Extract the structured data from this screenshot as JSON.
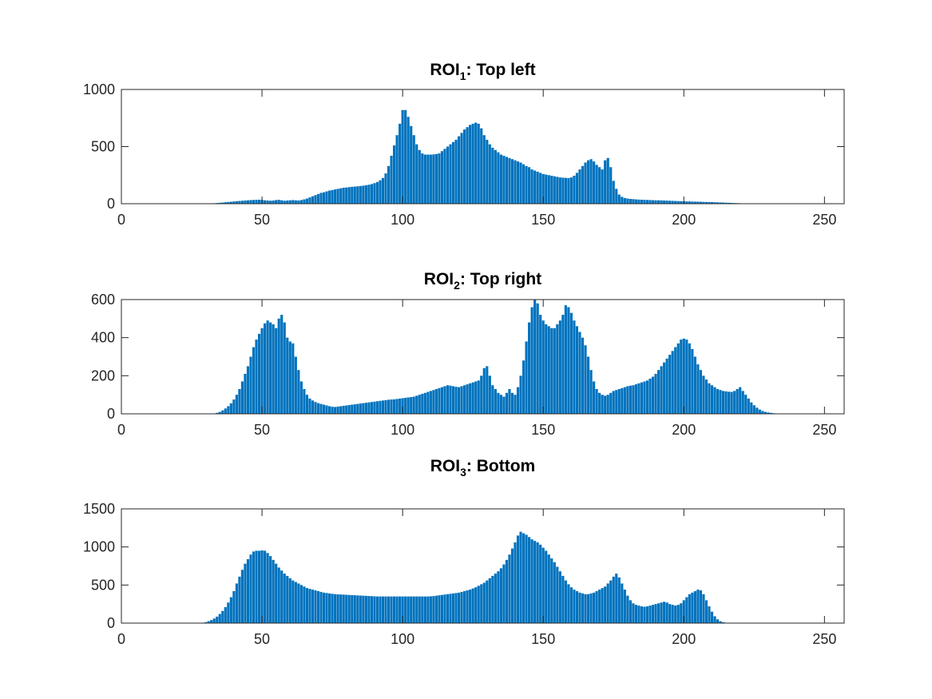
{
  "colors": {
    "bar": "#0072BD",
    "bar_edge": "#ffffff",
    "axes": "#262626",
    "text": "#262626"
  },
  "chart_data": [
    {
      "type": "bar",
      "title": {
        "main": "ROI",
        "sub": "1",
        "rest": ": Top left"
      },
      "xlabel": "",
      "ylabel": "",
      "xlim": [
        0,
        257
      ],
      "ylim": [
        0,
        1000
      ],
      "xticks": [
        0,
        50,
        100,
        150,
        200,
        250
      ],
      "yticks": [
        0,
        500,
        1000
      ],
      "grid": false,
      "x_start": 0,
      "values": [
        0,
        0,
        0,
        0,
        0,
        0,
        0,
        0,
        0,
        0,
        0,
        0,
        0,
        0,
        0,
        0,
        0,
        0,
        0,
        0,
        0,
        0,
        0,
        0,
        0,
        0,
        0,
        0,
        0,
        0,
        1,
        2,
        3,
        4,
        6,
        8,
        10,
        13,
        15,
        17,
        20,
        22,
        24,
        26,
        28,
        30,
        32,
        33,
        34,
        35,
        33,
        30,
        28,
        26,
        28,
        32,
        34,
        30,
        26,
        28,
        30,
        32,
        30,
        28,
        32,
        38,
        45,
        55,
        65,
        75,
        85,
        95,
        100,
        108,
        115,
        120,
        125,
        130,
        135,
        140,
        142,
        145,
        148,
        150,
        152,
        155,
        158,
        162,
        166,
        172,
        180,
        190,
        205,
        225,
        265,
        330,
        420,
        510,
        600,
        700,
        820,
        820,
        760,
        680,
        600,
        520,
        470,
        440,
        430,
        430,
        430,
        432,
        435,
        440,
        460,
        480,
        500,
        520,
        540,
        560,
        590,
        620,
        650,
        670,
        690,
        700,
        710,
        700,
        660,
        600,
        560,
        520,
        490,
        470,
        450,
        430,
        420,
        410,
        400,
        390,
        380,
        370,
        360,
        345,
        330,
        320,
        300,
        290,
        280,
        270,
        260,
        255,
        250,
        245,
        240,
        235,
        230,
        228,
        226,
        224,
        230,
        245,
        270,
        300,
        330,
        360,
        380,
        390,
        370,
        340,
        320,
        300,
        380,
        400,
        320,
        200,
        130,
        80,
        60,
        50,
        45,
        42,
        40,
        38,
        36,
        35,
        34,
        33,
        32,
        31,
        30,
        30,
        29,
        28,
        27,
        26,
        25,
        24,
        23,
        22,
        21,
        20,
        20,
        19,
        18,
        18,
        17,
        16,
        15,
        15,
        14,
        13,
        12,
        11,
        10,
        9,
        8,
        7,
        6,
        5,
        4,
        3,
        2,
        1,
        1,
        0,
        0,
        0,
        0,
        0,
        0,
        0,
        0,
        0,
        0,
        0,
        0,
        0,
        0,
        0,
        0,
        0,
        0,
        0,
        0,
        0,
        0,
        0,
        0,
        0,
        0,
        0,
        0,
        0,
        0,
        0,
        0
      ]
    },
    {
      "type": "bar",
      "title": {
        "main": "ROI",
        "sub": "2",
        "rest": ": Top right"
      },
      "xlabel": "",
      "ylabel": "",
      "xlim": [
        0,
        257
      ],
      "ylim": [
        0,
        600
      ],
      "xticks": [
        0,
        50,
        100,
        150,
        200,
        250
      ],
      "yticks": [
        0,
        200,
        400,
        600
      ],
      "grid": false,
      "x_start": 0,
      "values": [
        0,
        0,
        0,
        0,
        0,
        0,
        0,
        0,
        0,
        0,
        0,
        0,
        0,
        0,
        0,
        0,
        0,
        0,
        0,
        0,
        0,
        0,
        0,
        0,
        0,
        0,
        0,
        0,
        0,
        0,
        0,
        0,
        1,
        2,
        5,
        10,
        18,
        28,
        40,
        55,
        75,
        100,
        130,
        170,
        210,
        250,
        300,
        350,
        390,
        420,
        450,
        475,
        490,
        480,
        470,
        450,
        500,
        520,
        480,
        400,
        380,
        370,
        300,
        230,
        170,
        130,
        100,
        80,
        70,
        62,
        56,
        52,
        48,
        44,
        40,
        37,
        36,
        38,
        40,
        42,
        44,
        46,
        48,
        50,
        52,
        54,
        56,
        58,
        60,
        62,
        64,
        66,
        68,
        70,
        72,
        74,
        75,
        76,
        78,
        80,
        82,
        84,
        86,
        88,
        90,
        95,
        100,
        105,
        110,
        115,
        120,
        125,
        130,
        135,
        140,
        145,
        150,
        148,
        145,
        142,
        140,
        145,
        150,
        155,
        160,
        165,
        170,
        175,
        200,
        240,
        250,
        200,
        150,
        130,
        110,
        100,
        90,
        110,
        130,
        110,
        100,
        140,
        200,
        280,
        380,
        480,
        560,
        600,
        580,
        520,
        490,
        470,
        460,
        450,
        450,
        470,
        490,
        520,
        570,
        560,
        530,
        490,
        460,
        430,
        400,
        360,
        300,
        230,
        170,
        130,
        110,
        100,
        95,
        100,
        110,
        120,
        125,
        130,
        135,
        140,
        145,
        148,
        150,
        155,
        160,
        165,
        170,
        175,
        185,
        195,
        210,
        230,
        250,
        270,
        290,
        310,
        330,
        350,
        370,
        390,
        395,
        390,
        370,
        340,
        300,
        260,
        230,
        200,
        180,
        160,
        150,
        140,
        130,
        125,
        120,
        118,
        116,
        115,
        120,
        130,
        140,
        120,
        100,
        80,
        60,
        45,
        32,
        22,
        15,
        10,
        7,
        5,
        3,
        2,
        1,
        0,
        0,
        0,
        0,
        0,
        0,
        0,
        0,
        0,
        0,
        0,
        0,
        0,
        0,
        0,
        0,
        0,
        0,
        0,
        0,
        0,
        0,
        0,
        0,
        0,
        0,
        0,
        0,
        0,
        0,
        0
      ]
    },
    {
      "type": "bar",
      "title": {
        "main": "ROI",
        "sub": "3",
        "rest": ": Bottom"
      },
      "xlabel": "",
      "ylabel": "",
      "xlim": [
        0,
        257
      ],
      "ylim": [
        0,
        1500
      ],
      "xticks": [
        0,
        50,
        100,
        150,
        200,
        250
      ],
      "yticks": [
        0,
        500,
        1000,
        1500
      ],
      "grid": false,
      "x_start": 0,
      "values": [
        0,
        0,
        0,
        0,
        0,
        0,
        0,
        0,
        0,
        0,
        0,
        0,
        0,
        0,
        0,
        0,
        0,
        0,
        0,
        0,
        0,
        0,
        0,
        0,
        0,
        0,
        0,
        0,
        2,
        5,
        12,
        25,
        40,
        60,
        85,
        120,
        160,
        210,
        270,
        340,
        420,
        520,
        610,
        700,
        780,
        840,
        900,
        940,
        950,
        950,
        955,
        950,
        920,
        880,
        830,
        780,
        730,
        690,
        650,
        620,
        590,
        560,
        540,
        520,
        500,
        480,
        460,
        450,
        440,
        430,
        420,
        410,
        400,
        395,
        390,
        385,
        380,
        378,
        376,
        374,
        372,
        370,
        368,
        366,
        364,
        362,
        360,
        358,
        356,
        354,
        352,
        350,
        350,
        350,
        350,
        350,
        350,
        350,
        350,
        350,
        350,
        350,
        350,
        350,
        350,
        350,
        350,
        350,
        350,
        350,
        352,
        355,
        360,
        365,
        370,
        375,
        380,
        385,
        390,
        395,
        400,
        410,
        420,
        430,
        440,
        455,
        470,
        490,
        510,
        530,
        560,
        590,
        620,
        650,
        680,
        720,
        770,
        830,
        900,
        980,
        1060,
        1150,
        1200,
        1180,
        1160,
        1130,
        1100,
        1080,
        1060,
        1030,
        990,
        950,
        900,
        850,
        800,
        740,
        680,
        620,
        560,
        510,
        470,
        440,
        420,
        400,
        390,
        380,
        380,
        390,
        400,
        420,
        440,
        460,
        480,
        520,
        560,
        610,
        650,
        600,
        520,
        440,
        360,
        300,
        260,
        240,
        230,
        220,
        215,
        220,
        230,
        240,
        250,
        260,
        270,
        280,
        270,
        250,
        240,
        230,
        240,
        260,
        300,
        340,
        380,
        400,
        420,
        440,
        430,
        380,
        300,
        220,
        150,
        90,
        50,
        25,
        12,
        5,
        2,
        1,
        0,
        0,
        0,
        0,
        0,
        0,
        0,
        0,
        0,
        0,
        0,
        0,
        0,
        0,
        0,
        0,
        0,
        0,
        0,
        0,
        0,
        0,
        0,
        0,
        0,
        0,
        0,
        0,
        0,
        0,
        0,
        0,
        0,
        0,
        0,
        0
      ]
    }
  ]
}
